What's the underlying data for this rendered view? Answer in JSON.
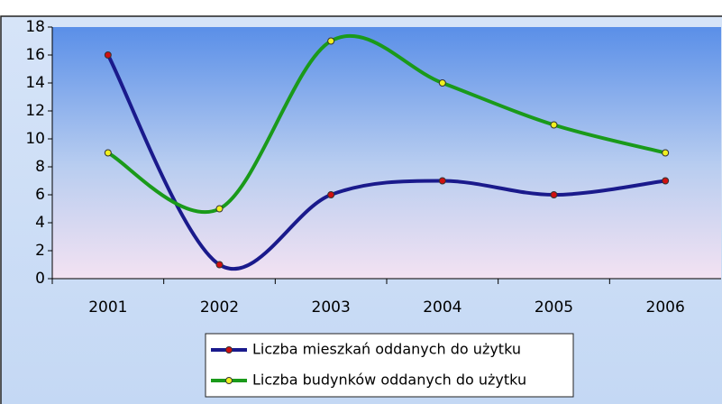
{
  "chart_data": {
    "type": "line",
    "categories": [
      "2001",
      "2002",
      "2003",
      "2004",
      "2005",
      "2006"
    ],
    "series": [
      {
        "name": "Liczba mieszkań oddanych do użytku",
        "color": "#1a1a8c",
        "marker_color": "#d01010",
        "values": [
          16,
          1,
          6,
          7,
          6,
          7
        ]
      },
      {
        "name": "Liczba budynków oddanych do użytku",
        "color": "#1a9a1a",
        "marker_color": "#f0f020",
        "values": [
          9,
          5,
          17,
          14,
          11,
          9
        ]
      }
    ],
    "ylim": [
      0,
      18
    ],
    "yticks": [
      0,
      2,
      4,
      6,
      8,
      10,
      12,
      14,
      16,
      18
    ],
    "smooth": true,
    "legend": "bottom"
  }
}
